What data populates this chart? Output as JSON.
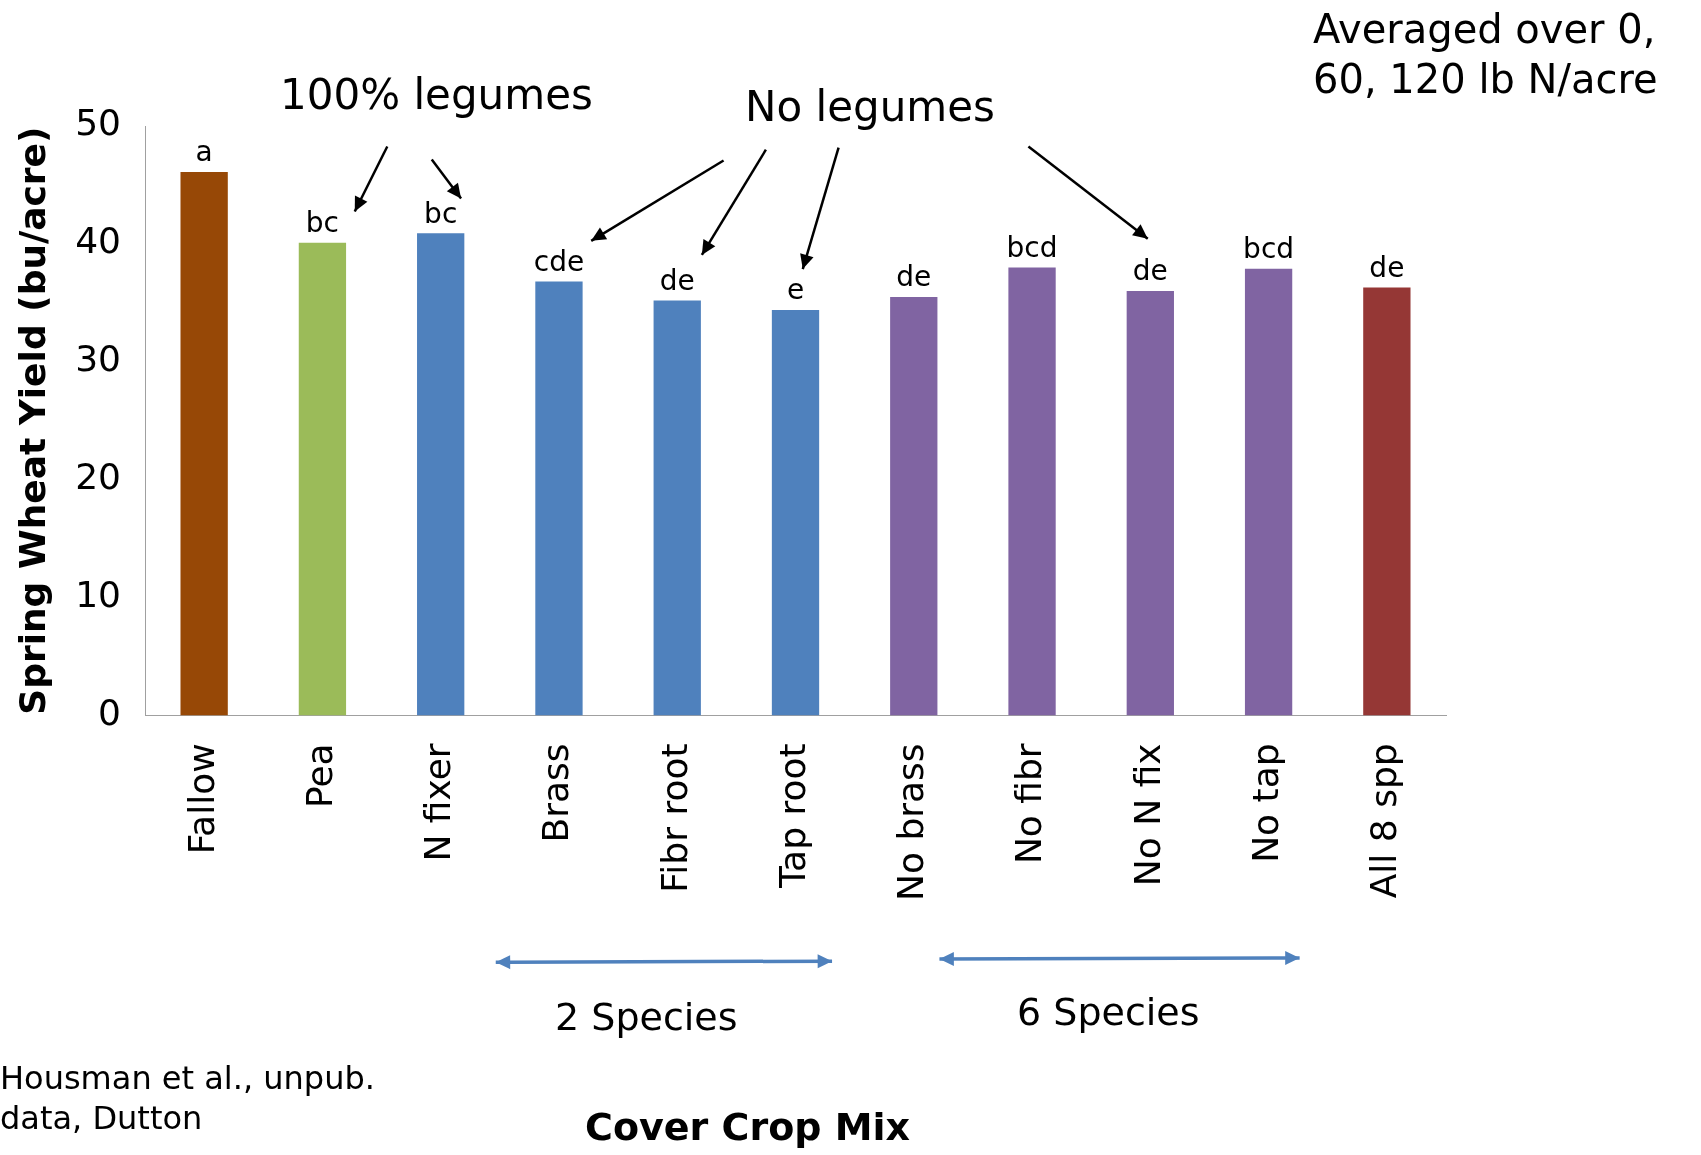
{
  "chart_data": {
    "type": "bar",
    "ylabel": "Spring Wheat Yield (bu/acre)",
    "categories": [
      "Fallow",
      "Pea",
      "N fixer",
      "Brass",
      "Fibr root",
      "Tap root",
      "No brass",
      "No fibr",
      "No N fix",
      "No tap",
      "All 8 spp"
    ],
    "values": [
      46.1,
      40.1,
      40.9,
      36.8,
      35.2,
      34.4,
      35.5,
      38.0,
      36.0,
      37.9,
      36.3
    ],
    "value_labels": [
      "a",
      "bc",
      "bc",
      "cde",
      "de",
      "e",
      "de",
      "bcd",
      "de",
      "bcd",
      "de"
    ],
    "colors": [
      "#974806",
      "#9bbb59",
      "#4f81bd",
      "#4f81bd",
      "#4f81bd",
      "#4f81bd",
      "#8064a2",
      "#8064a2",
      "#8064a2",
      "#8064a2",
      "#953735"
    ],
    "ylim": [
      0,
      50
    ],
    "yticks": [
      0,
      10,
      20,
      30,
      40,
      50
    ],
    "grid": false,
    "legend": false,
    "annotations": [
      "100% legumes",
      "No legumes",
      "Averaged over 0, 60, 120 lb N/acre",
      "2 Species",
      "6 Species",
      "Housman et al., unpub. data, Dutton",
      "Cover Crop Mix"
    ]
  }
}
